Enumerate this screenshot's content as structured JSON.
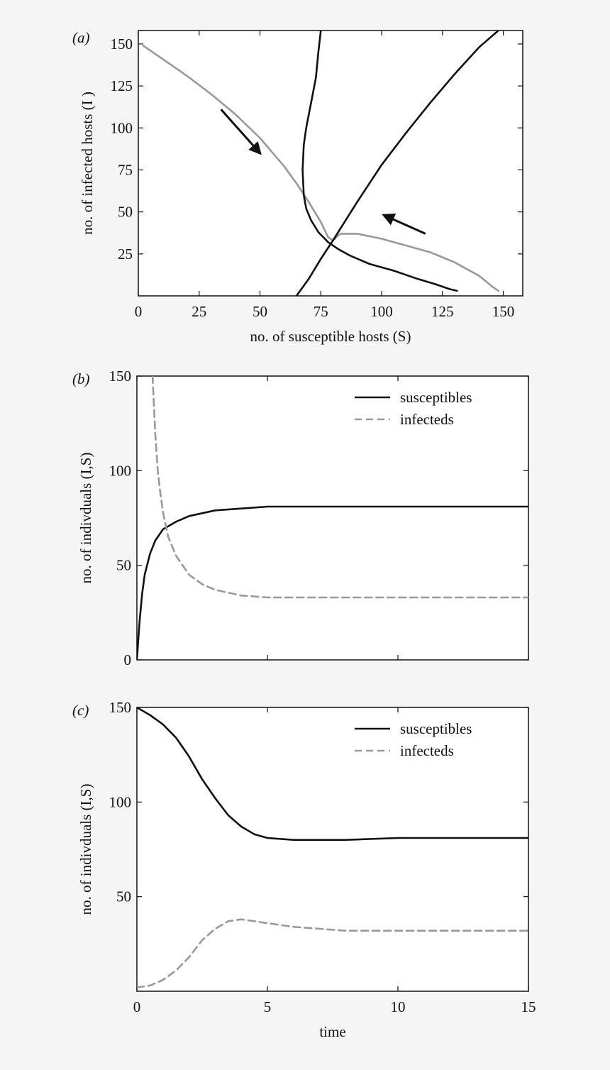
{
  "chart_data": [
    {
      "type": "line",
      "panel_label": "(a)",
      "xlabel": "no. of susceptible hosts (S)",
      "ylabel": "no. of infected hosts (I )",
      "xlim": [
        0,
        158
      ],
      "ylim": [
        0,
        158
      ],
      "x_ticks": [
        "0",
        "25",
        "50",
        "75",
        "100",
        "125",
        "150"
      ],
      "x_tick_values": [
        0,
        25,
        50,
        75,
        100,
        125,
        150
      ],
      "y_ticks": [
        "25",
        "50",
        "75",
        "100",
        "125",
        "150"
      ],
      "y_tick_values": [
        25,
        50,
        75,
        100,
        125,
        150
      ],
      "colors": {
        "trajectory": "#999999",
        "nullcline": "#111111"
      },
      "series": [
        {
          "style": "gray-solid",
          "x": [
            2,
            10,
            20,
            30,
            40,
            50,
            60,
            65,
            70,
            75,
            78,
            80,
            83,
            90,
            100,
            110,
            120,
            130,
            140,
            146,
            148
          ],
          "y": [
            149,
            141,
            131,
            120,
            108,
            94,
            77,
            67,
            56,
            44,
            35,
            33,
            37,
            37,
            34,
            30,
            26,
            20,
            12,
            5,
            3
          ]
        },
        {
          "style": "black-solid",
          "x": [
            75,
            74,
            73,
            71,
            69,
            68,
            67.5,
            68,
            69,
            71,
            74,
            78,
            82,
            87,
            95,
            105,
            115,
            122,
            128,
            131
          ],
          "y": [
            158,
            145,
            130,
            115,
            100,
            90,
            75,
            60,
            52,
            45,
            38,
            32,
            28,
            24,
            19,
            15,
            10,
            7,
            4,
            3
          ]
        },
        {
          "style": "black-solid",
          "x": [
            65,
            70,
            75,
            80,
            90,
            100,
            110,
            120,
            130,
            140,
            148
          ],
          "y": [
            0,
            10,
            22,
            33,
            56,
            78,
            97,
            115,
            132,
            148,
            158
          ]
        }
      ],
      "annotations": [
        {
          "type": "arrow",
          "from": [
            34,
            111
          ],
          "to": [
            50,
            85
          ]
        },
        {
          "type": "arrow",
          "from": [
            118,
            37
          ],
          "to": [
            101,
            48
          ]
        }
      ]
    },
    {
      "type": "line",
      "panel_label": "(b)",
      "xlabel": "",
      "ylabel": "no. of indivduals (I,S)",
      "xlim": [
        0,
        15
      ],
      "ylim": [
        0,
        150
      ],
      "x_ticks": [],
      "x_tick_values": [
        0,
        5,
        10,
        15
      ],
      "y_ticks": [
        "0",
        "50",
        "100",
        "150"
      ],
      "y_tick_values": [
        0,
        50,
        100,
        150
      ],
      "legend": {
        "placement": "top-right",
        "entries": [
          "susceptibles",
          "infecteds"
        ]
      },
      "series": [
        {
          "name": "susceptibles",
          "style": "black-solid",
          "x": [
            0,
            0.1,
            0.2,
            0.3,
            0.5,
            0.7,
            1.0,
            1.5,
            2,
            3,
            4,
            5,
            6,
            8,
            10,
            12,
            15
          ],
          "y": [
            0,
            20,
            35,
            45,
            56,
            63,
            69,
            73,
            76,
            79,
            80,
            81,
            81,
            81,
            81,
            81,
            81
          ]
        },
        {
          "name": "infecteds",
          "style": "gray-dashed",
          "x": [
            0.6,
            0.7,
            0.8,
            0.9,
            1.0,
            1.2,
            1.5,
            2,
            2.5,
            3,
            4,
            5,
            7,
            10,
            15
          ],
          "y": [
            150,
            120,
            100,
            88,
            78,
            65,
            55,
            45,
            40,
            37,
            34,
            33,
            33,
            33,
            33
          ]
        }
      ]
    },
    {
      "type": "line",
      "panel_label": "(c)",
      "xlabel": "time",
      "ylabel": "no. of indivduals (I,S)",
      "xlim": [
        0,
        15
      ],
      "ylim": [
        0,
        150
      ],
      "x_ticks": [
        "0",
        "5",
        "10",
        "15"
      ],
      "x_tick_values": [
        0,
        5,
        10,
        15
      ],
      "y_ticks": [
        "50",
        "100",
        "150"
      ],
      "y_tick_values": [
        50,
        100,
        150
      ],
      "legend": {
        "placement": "top-right",
        "entries": [
          "susceptibles",
          "infecteds"
        ]
      },
      "series": [
        {
          "name": "susceptibles",
          "style": "black-solid",
          "x": [
            0,
            0.5,
            1,
            1.5,
            2,
            2.5,
            3,
            3.5,
            4,
            4.5,
            5,
            6,
            7,
            8,
            10,
            12,
            15
          ],
          "y": [
            150,
            146,
            141,
            134,
            124,
            112,
            102,
            93,
            87,
            83,
            81,
            80,
            80,
            80,
            81,
            81,
            81
          ]
        },
        {
          "name": "infecteds",
          "style": "gray-dashed",
          "x": [
            0,
            0.5,
            1,
            1.5,
            2,
            2.5,
            3,
            3.5,
            4,
            4.5,
            5,
            6,
            7,
            8,
            10,
            12,
            15
          ],
          "y": [
            2,
            3,
            6,
            11,
            18,
            27,
            33,
            37,
            38,
            37,
            36,
            34,
            33,
            32,
            32,
            32,
            32
          ]
        }
      ]
    }
  ]
}
